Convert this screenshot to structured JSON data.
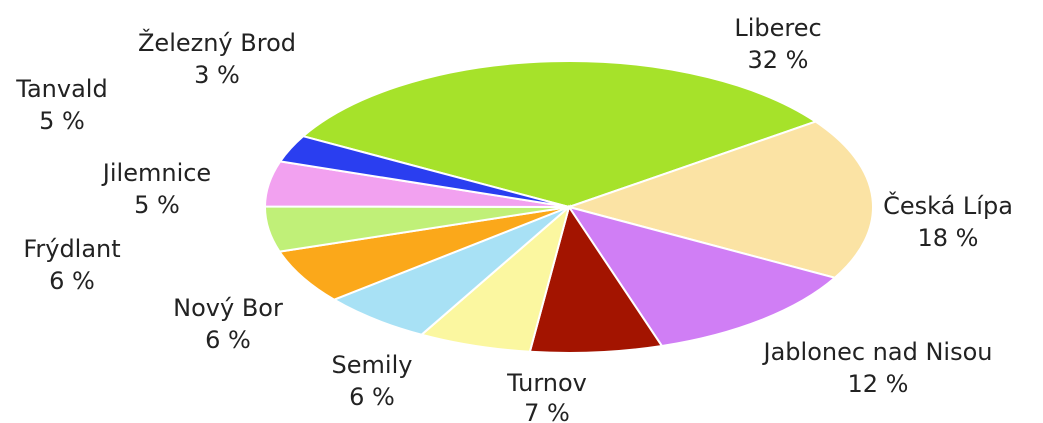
{
  "chart_data": {
    "type": "pie",
    "categories": [
      "Liberec",
      "Česká Lípa",
      "Jablonec nad Nisou",
      "Turnov",
      "Semily",
      "Nový Bor",
      "Frýdlant",
      "Jilemnice",
      "Tanvald",
      "Železný Brod"
    ],
    "values": [
      32,
      18,
      12,
      7,
      6,
      6,
      6,
      5,
      5,
      3
    ],
    "value_labels": [
      "32 %",
      "18 %",
      "12 %",
      "7 %",
      "6 %",
      "6 %",
      "6 %",
      "5 %",
      "5 %",
      "3 %"
    ],
    "colors": [
      "#a6e22a",
      "#fbe3a4",
      "#d07ef5",
      "#a31400",
      "#fbf7a0",
      "#a8e1f5",
      "#fba81a",
      "#c0f078",
      "#f2a1f0",
      "#2a3ef0"
    ],
    "start_clockwise_from": "upper-left",
    "legend": "none",
    "grid": false
  }
}
